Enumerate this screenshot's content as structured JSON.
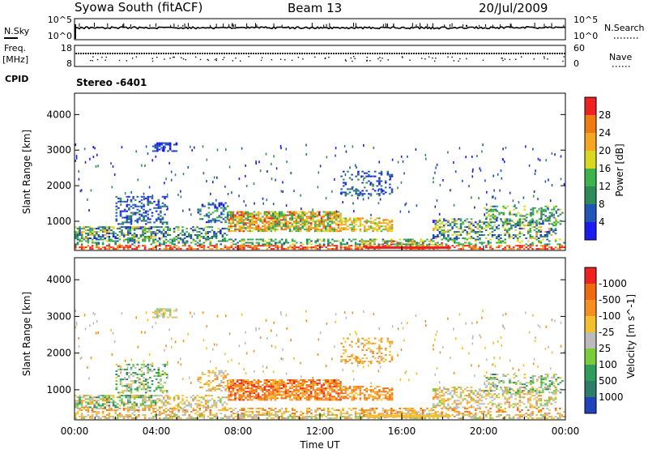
{
  "header": {
    "station": "Syowa South (fitACF)",
    "beam": "Beam 13",
    "date": "20/Jul/2009"
  },
  "panels": {
    "noise": {
      "left_label": "N.Sky",
      "right_label": "N.Search",
      "left_ticks": [
        "10^5",
        "10^0"
      ],
      "right_ticks": [
        "10^5",
        "10^0"
      ]
    },
    "freq": {
      "left_label_line1": "Freq.",
      "left_label_line2": "[MHz]",
      "right_label": "Nave",
      "left_ticks": [
        "18",
        "8"
      ],
      "right_ticks": [
        "60",
        "0"
      ]
    },
    "cpid": {
      "label": "CPID",
      "value": "Stereo -6401"
    }
  },
  "chart_data": [
    {
      "type": "heatmap",
      "name": "power",
      "ylabel": "Slant Range [km]",
      "ylim": [
        180,
        4600
      ],
      "yticks": [
        1000,
        2000,
        3000,
        4000
      ],
      "colorbar": {
        "label": "Power [dB]",
        "ticks": [
          "4",
          "8",
          "12",
          "16",
          "20",
          "24",
          "28"
        ],
        "colors": [
          "#1c1cf0",
          "#2255b5",
          "#2e8b57",
          "#3cb44b",
          "#d8d820",
          "#f5a623",
          "#ee7a12",
          "#ee2222"
        ]
      }
    },
    {
      "type": "heatmap",
      "name": "velocity",
      "ylabel": "Slant Range [km]",
      "xlabel": "Time UT",
      "ylim": [
        180,
        4600
      ],
      "yticks": [
        1000,
        2000,
        3000,
        4000
      ],
      "xticks": [
        "00:00",
        "04:00",
        "08:00",
        "12:00",
        "16:00",
        "20:00",
        "00:00"
      ],
      "colorbar": {
        "label": "Velocity [m s^-1]",
        "ticks": [
          "1000",
          "500",
          "100",
          "25",
          "-25",
          "-100",
          "-500",
          "-1000"
        ],
        "colors": [
          "#2244bb",
          "#2e7d6a",
          "#2e9e5a",
          "#7acc3a",
          "#bbbbbb",
          "#f5c030",
          "#f59020",
          "#ee6a10",
          "#ee2222"
        ]
      }
    }
  ]
}
